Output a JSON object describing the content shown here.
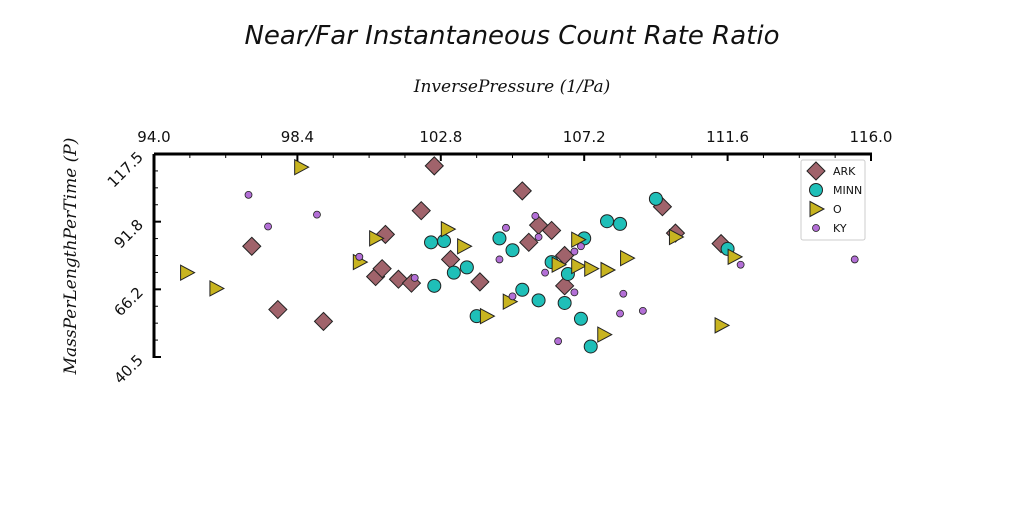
{
  "chart_data": {
    "type": "scatter",
    "title": "Near/Far Instantaneous Count Rate Ratio",
    "xlabel": "InversePressure (1/Pa)",
    "ylabel": "MassPerLengthPerTime (P)",
    "xlim": [
      94.0,
      116.0
    ],
    "ylim": [
      40.5,
      117.5
    ],
    "x_ticks": [
      "94.0",
      "98.4",
      "102.8",
      "107.2",
      "111.6",
      "116.0"
    ],
    "y_ticks": [
      "40.5",
      "66.2",
      "91.8",
      "117.5"
    ],
    "x_axis_position": "top",
    "grid": false,
    "legend_position": "top-right",
    "series": [
      {
        "name": "ARK",
        "marker": "diamond",
        "color": "#a0636b",
        "points": [
          [
            97.0,
            82.5
          ],
          [
            97.8,
            58.5
          ],
          [
            99.2,
            54.0
          ],
          [
            102.6,
            113.0
          ],
          [
            102.2,
            96.0
          ],
          [
            101.1,
            87.0
          ],
          [
            103.1,
            77.5
          ],
          [
            104.0,
            69.0
          ],
          [
            105.3,
            103.5
          ],
          [
            105.5,
            84.0
          ],
          [
            105.8,
            90.5
          ],
          [
            106.2,
            88.5
          ],
          [
            106.6,
            79.0
          ],
          [
            106.6,
            67.5
          ],
          [
            100.8,
            71.0
          ],
          [
            101.0,
            74.0
          ],
          [
            101.5,
            70.0
          ],
          [
            101.9,
            68.5
          ],
          [
            109.6,
            97.5
          ],
          [
            110.0,
            87.5
          ],
          [
            111.4,
            83.5
          ]
        ]
      },
      {
        "name": "MINN",
        "marker": "circle",
        "color": "#1fbfb8",
        "points": [
          [
            102.5,
            84.0
          ],
          [
            102.9,
            84.5
          ],
          [
            102.6,
            67.5
          ],
          [
            103.2,
            72.5
          ],
          [
            103.6,
            74.5
          ],
          [
            103.9,
            56.0
          ],
          [
            104.6,
            85.5
          ],
          [
            105.0,
            81.0
          ],
          [
            105.3,
            66.0
          ],
          [
            105.8,
            62.0
          ],
          [
            106.2,
            76.5
          ],
          [
            106.6,
            61.0
          ],
          [
            106.7,
            72.0
          ],
          [
            107.1,
            55.0
          ],
          [
            107.2,
            85.5
          ],
          [
            107.4,
            44.5
          ],
          [
            107.9,
            92.0
          ],
          [
            108.3,
            91.0
          ],
          [
            109.4,
            100.5
          ],
          [
            111.6,
            81.5
          ]
        ]
      },
      {
        "name": "O",
        "marker": "triangle-right",
        "color": "#c8b420",
        "points": [
          [
            95.0,
            72.5
          ],
          [
            95.9,
            66.5
          ],
          [
            98.5,
            112.5
          ],
          [
            100.3,
            76.5
          ],
          [
            100.8,
            85.5
          ],
          [
            103.0,
            89.0
          ],
          [
            103.5,
            82.5
          ],
          [
            104.2,
            56.0
          ],
          [
            104.9,
            61.5
          ],
          [
            106.4,
            75.5
          ],
          [
            107.0,
            85.0
          ],
          [
            107.0,
            75.0
          ],
          [
            107.4,
            74.0
          ],
          [
            107.9,
            73.5
          ],
          [
            108.5,
            78.0
          ],
          [
            107.8,
            49.0
          ],
          [
            110.0,
            86.0
          ],
          [
            111.4,
            52.5
          ],
          [
            111.8,
            78.5
          ]
        ]
      },
      {
        "name": "KY",
        "marker": "small-circle",
        "color": "#b36fd6",
        "points": [
          [
            96.9,
            102.0
          ],
          [
            97.5,
            90.0
          ],
          [
            99.0,
            94.5
          ],
          [
            100.3,
            78.5
          ],
          [
            102.0,
            70.5
          ],
          [
            104.6,
            77.5
          ],
          [
            104.8,
            89.5
          ],
          [
            105.0,
            63.5
          ],
          [
            105.7,
            94.0
          ],
          [
            105.8,
            86.0
          ],
          [
            106.0,
            72.5
          ],
          [
            106.4,
            46.5
          ],
          [
            106.9,
            80.5
          ],
          [
            106.9,
            65.0
          ],
          [
            107.1,
            82.5
          ],
          [
            108.3,
            57.0
          ],
          [
            108.4,
            64.5
          ],
          [
            109.0,
            58.0
          ],
          [
            112.0,
            75.5
          ],
          [
            115.5,
            77.5
          ]
        ]
      }
    ]
  }
}
